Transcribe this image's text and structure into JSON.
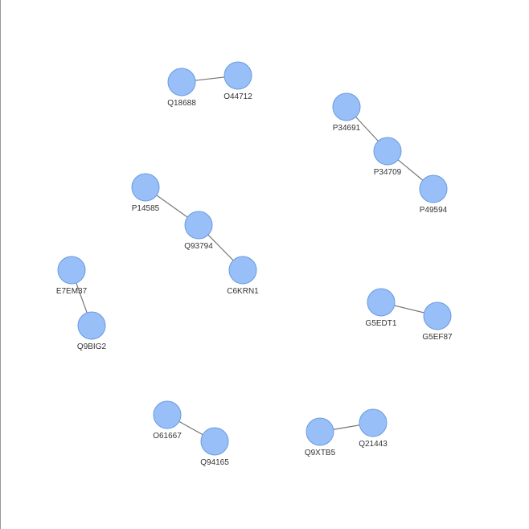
{
  "network": {
    "node_color": "#98bff7",
    "node_stroke": "#6a9ae0",
    "edge_color": "#777777",
    "nodes": [
      {
        "id": "Q18688",
        "label": "Q18688"
      },
      {
        "id": "O44712",
        "label": "O44712"
      },
      {
        "id": "P34691",
        "label": "P34691"
      },
      {
        "id": "P34709",
        "label": "P34709"
      },
      {
        "id": "P49594",
        "label": "P49594"
      },
      {
        "id": "P14585",
        "label": "P14585"
      },
      {
        "id": "Q93794",
        "label": "Q93794"
      },
      {
        "id": "C6KRN1",
        "label": "C6KRN1"
      },
      {
        "id": "E7EM37",
        "label": "E7EM37"
      },
      {
        "id": "Q9BIG2",
        "label": "Q9BIG2"
      },
      {
        "id": "G5EDT1",
        "label": "G5EDT1"
      },
      {
        "id": "G5EF87",
        "label": "G5EF87"
      },
      {
        "id": "O61667",
        "label": "O61667"
      },
      {
        "id": "Q94165",
        "label": "Q94165"
      },
      {
        "id": "Q9XTB5",
        "label": "Q9XTB5"
      },
      {
        "id": "Q21443",
        "label": "Q21443"
      }
    ],
    "edges": [
      {
        "source": "Q18688",
        "target": "O44712"
      },
      {
        "source": "P34691",
        "target": "P34709"
      },
      {
        "source": "P34709",
        "target": "P49594"
      },
      {
        "source": "P14585",
        "target": "Q93794"
      },
      {
        "source": "Q93794",
        "target": "C6KRN1"
      },
      {
        "source": "E7EM37",
        "target": "Q9BIG2"
      },
      {
        "source": "G5EDT1",
        "target": "G5EF87"
      },
      {
        "source": "O61667",
        "target": "Q94165"
      },
      {
        "source": "Q9XTB5",
        "target": "Q21443"
      }
    ]
  }
}
